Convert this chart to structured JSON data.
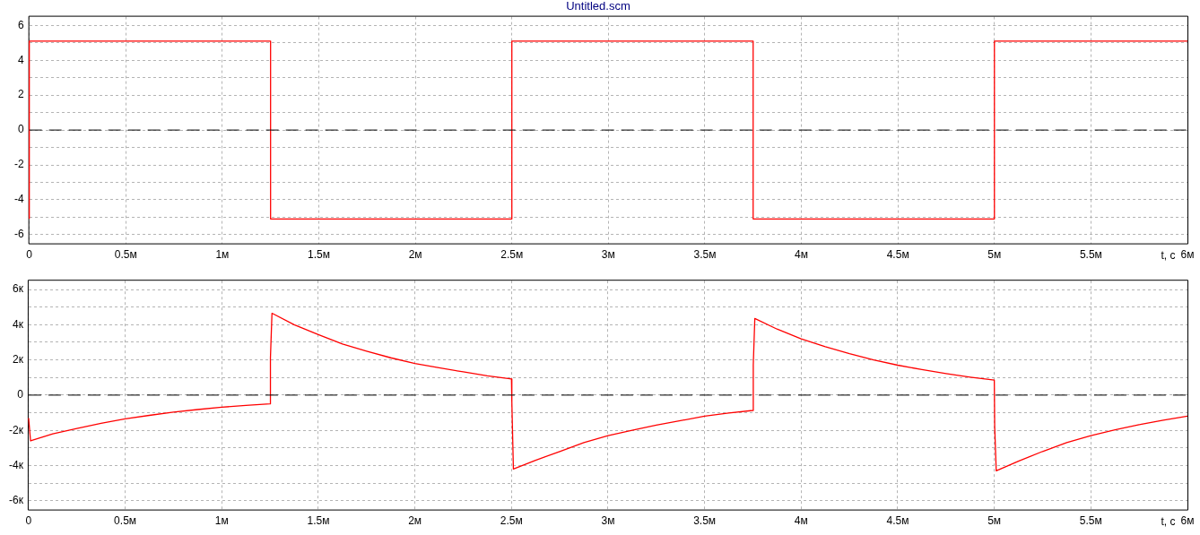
{
  "chart_data": [
    {
      "type": "line",
      "title": "Untitled.scm",
      "xlabel": "t, с",
      "xlim": [
        0,
        6
      ],
      "xticks": [
        0,
        {
          "value": 0.5,
          "label": "0.5м"
        },
        {
          "value": 1,
          "label": "1м"
        },
        {
          "value": 1.5,
          "label": "1.5м"
        },
        {
          "value": 2,
          "label": "2м"
        },
        {
          "value": 2.5,
          "label": "2.5м"
        },
        {
          "value": 3,
          "label": "3м"
        },
        {
          "value": 3.5,
          "label": "3.5м"
        },
        {
          "value": 4,
          "label": "4м"
        },
        {
          "value": 4.5,
          "label": "4.5м"
        },
        {
          "value": 5,
          "label": "5м"
        },
        {
          "value": 5.5,
          "label": "5.5м"
        },
        {
          "value": 6,
          "label": "6м"
        }
      ],
      "ylim": [
        -6.5,
        6.5
      ],
      "yticks": [
        -6,
        {
          "value": -5,
          "label": null
        },
        -4,
        {
          "value": -3,
          "label": null
        },
        -2,
        {
          "value": -1,
          "label": null
        },
        0,
        {
          "value": 1,
          "label": null
        },
        2,
        {
          "value": 3,
          "label": null
        },
        4,
        {
          "value": 5,
          "label": null
        },
        6
      ],
      "grid": true,
      "legend": false,
      "marker": "none",
      "line_style": "solid",
      "ref_lines": [
        {
          "axis": "y",
          "value": 0,
          "color": "#000000",
          "line_style": "dashed"
        }
      ],
      "series": [
        {
          "color": "#ff0000",
          "x": [
            0,
            0,
            1.25,
            1.25,
            2.5,
            2.5,
            3.75,
            3.75,
            5,
            5,
            6
          ],
          "values": [
            -5.1,
            5.1,
            5.1,
            -5.1,
            -5.1,
            5.1,
            5.1,
            -5.1,
            -5.1,
            5.1,
            5.1
          ]
        }
      ]
    },
    {
      "type": "line",
      "xlabel": "t, с",
      "xlim": [
        0,
        6
      ],
      "xticks": [
        0,
        {
          "value": 0.5,
          "label": "0.5м"
        },
        {
          "value": 1,
          "label": "1м"
        },
        {
          "value": 1.5,
          "label": "1.5м"
        },
        {
          "value": 2,
          "label": "2м"
        },
        {
          "value": 2.5,
          "label": "2.5м"
        },
        {
          "value": 3,
          "label": "3м"
        },
        {
          "value": 3.5,
          "label": "3.5м"
        },
        {
          "value": 4,
          "label": "4м"
        },
        {
          "value": 4.5,
          "label": "4.5м"
        },
        {
          "value": 5,
          "label": "5м"
        },
        {
          "value": 5.5,
          "label": "5.5м"
        },
        {
          "value": 6,
          "label": "6м"
        }
      ],
      "ylim": [
        -6.5,
        6.5
      ],
      "yticks": [
        {
          "value": -6,
          "label": "-6к"
        },
        {
          "value": -5,
          "label": null
        },
        {
          "value": -4,
          "label": "-4к"
        },
        {
          "value": -3,
          "label": null
        },
        {
          "value": -2,
          "label": "-2к"
        },
        {
          "value": -1,
          "label": null
        },
        0,
        {
          "value": 1,
          "label": null
        },
        {
          "value": 2,
          "label": "2к"
        },
        {
          "value": 3,
          "label": null
        },
        {
          "value": 4,
          "label": "4к"
        },
        {
          "value": 5,
          "label": null
        },
        {
          "value": 6,
          "label": "6к"
        }
      ],
      "grid": true,
      "legend": false,
      "marker": "none",
      "line_style": "solid",
      "ref_lines": [
        {
          "axis": "y",
          "value": 0,
          "color": "#000000",
          "line_style": "dashed"
        }
      ],
      "series": [
        {
          "color": "#ff0000",
          "x": [
            0,
            0.01,
            0.125,
            0.25,
            0.375,
            0.5,
            0.625,
            0.75,
            0.875,
            1,
            1.125,
            1.25,
            1.252,
            1.26,
            1.375,
            1.5,
            1.625,
            1.75,
            1.875,
            2,
            2.125,
            2.25,
            2.375,
            2.5,
            2.502,
            2.51,
            2.625,
            2.75,
            2.875,
            3,
            3.125,
            3.25,
            3.375,
            3.5,
            3.625,
            3.75,
            3.752,
            3.76,
            3.875,
            4,
            4.125,
            4.25,
            4.375,
            4.5,
            4.625,
            4.75,
            4.875,
            5,
            5.002,
            5.01,
            5.125,
            5.25,
            5.375,
            5.5,
            5.625,
            5.75,
            5.875,
            6
          ],
          "values": [
            -1.3,
            -2.6,
            -2.2,
            -1.9,
            -1.6,
            -1.35,
            -1.15,
            -0.97,
            -0.82,
            -0.69,
            -0.58,
            -0.5,
            2.1,
            4.65,
            4.0,
            3.44,
            2.9,
            2.5,
            2.12,
            1.8,
            1.55,
            1.32,
            1.1,
            0.92,
            -0.4,
            -4.2,
            -3.7,
            -3.2,
            -2.7,
            -2.3,
            -2.0,
            -1.7,
            -1.45,
            -1.2,
            -1.02,
            -0.87,
            1.7,
            4.35,
            3.75,
            3.2,
            2.75,
            2.35,
            2.0,
            1.7,
            1.45,
            1.22,
            1.02,
            0.85,
            -1.8,
            -4.3,
            -3.75,
            -3.2,
            -2.7,
            -2.3,
            -1.97,
            -1.68,
            -1.42,
            -1.2
          ]
        }
      ]
    }
  ]
}
